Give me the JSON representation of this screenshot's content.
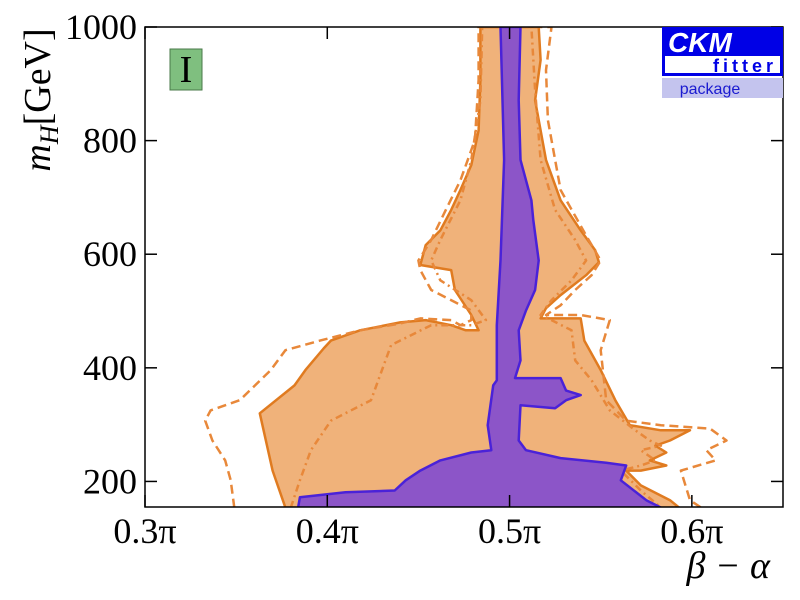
{
  "chart_data": {
    "type": "region",
    "x_label": "β − α",
    "y_label": "m",
    "y_label_sub": "H",
    "y_label_unit": "[GeV]",
    "panel_label": "I",
    "logo": {
      "line1": "CKM",
      "line2": "fitter",
      "line3": "package"
    },
    "xlim": [
      0.3,
      0.65
    ],
    "ylim": [
      155,
      1000
    ],
    "xticks": [
      {
        "value": 0.3,
        "label": "0.3π"
      },
      {
        "value": 0.4,
        "label": "0.4π"
      },
      {
        "value": 0.5,
        "label": "0.5π"
      },
      {
        "value": 0.6,
        "label": "0.6π"
      }
    ],
    "yticks": [
      200,
      400,
      600,
      800,
      1000
    ],
    "regions": [
      {
        "style": "filled",
        "fill": "#f0b27a",
        "stroke": "#e07b20",
        "x": [
          0.377,
          0.37,
          0.363,
          0.382,
          0.388,
          0.398,
          0.402,
          0.418,
          0.44,
          0.454,
          0.468,
          0.476,
          0.483,
          0.479,
          0.47,
          0.468,
          0.451,
          0.454,
          0.462,
          0.468,
          0.473,
          0.479,
          0.483,
          0.484,
          0.484,
          0.516,
          0.517,
          0.514,
          0.52,
          0.528,
          0.539,
          0.547,
          0.549,
          0.542,
          0.528,
          0.52,
          0.517,
          0.539,
          0.541,
          0.55,
          0.558,
          0.566,
          0.583,
          0.599,
          0.588,
          0.58,
          0.586,
          0.577,
          0.586,
          0.572,
          0.564,
          0.572,
          0.588,
          0.593
        ],
        "y": [
          154,
          219,
          320,
          369,
          396,
          434,
          448,
          466,
          480,
          484,
          475,
          466,
          466,
          493,
          537,
          572,
          581,
          616,
          642,
          678,
          713,
          757,
          818,
          907,
          1000,
          1000,
          942,
          871,
          766,
          695,
          642,
          607,
          586,
          563,
          528,
          505,
          487,
          487,
          448,
          396,
          343,
          299,
          290,
          290,
          272,
          263,
          251,
          237,
          228,
          219,
          219,
          193,
          167,
          154
        ]
      },
      {
        "style": "dashed",
        "stroke": "#e8883a",
        "x": [
          0.349,
          0.347,
          0.344,
          0.337,
          0.333,
          0.336,
          0.352,
          0.369,
          0.377,
          0.396,
          0.418,
          0.44,
          0.451,
          0.468,
          0.473,
          0.479,
          0.479,
          0.457,
          0.451,
          0.45,
          0.457,
          0.465,
          0.473,
          0.481,
          0.483,
          0.483,
          0.523,
          0.52,
          0.521,
          0.528,
          0.542,
          0.55,
          0.545,
          0.536,
          0.528,
          0.52,
          0.539,
          0.555,
          0.55,
          0.553,
          0.564,
          0.583,
          0.61,
          0.619,
          0.608,
          0.613,
          0.594,
          0.599,
          0.605
        ],
        "y": [
          154,
          202,
          237,
          272,
          307,
          325,
          343,
          396,
          431,
          448,
          466,
          478,
          487,
          484,
          475,
          484,
          501,
          537,
          572,
          589,
          625,
          678,
          730,
          801,
          907,
          1000,
          1000,
          924,
          836,
          713,
          633,
          589,
          563,
          537,
          510,
          493,
          493,
          484,
          431,
          343,
          307,
          299,
          293,
          272,
          255,
          237,
          219,
          167,
          154
        ]
      },
      {
        "style": "dashdot",
        "stroke": "#e8883a",
        "x": [
          0.38,
          0.385,
          0.391,
          0.402,
          0.424,
          0.429,
          0.435,
          0.457,
          0.479,
          0.487,
          0.479,
          0.462,
          0.457,
          0.462,
          0.473,
          0.479,
          0.484,
          0.485,
          0.512,
          0.514,
          0.517,
          0.525,
          0.536,
          0.542,
          0.534,
          0.523,
          0.517,
          0.523,
          0.534,
          0.536,
          0.545,
          0.555,
          0.569,
          0.577,
          0.583,
          0.572,
          0.58,
          0.572,
          0.561,
          0.572,
          0.583
        ],
        "y": [
          154,
          202,
          255,
          307,
          343,
          387,
          440,
          475,
          475,
          484,
          519,
          554,
          589,
          625,
          695,
          766,
          871,
          1000,
          1000,
          889,
          766,
          678,
          625,
          589,
          554,
          519,
          493,
          484,
          466,
          413,
          378,
          325,
          290,
          272,
          263,
          255,
          237,
          228,
          219,
          184,
          154
        ]
      },
      {
        "style": "filled",
        "fill": "#8c55c8",
        "stroke": "#4a22d8",
        "x": [
          0.384,
          0.385,
          0.41,
          0.437,
          0.443,
          0.451,
          0.462,
          0.479,
          0.49,
          0.488,
          0.491,
          0.493,
          0.493,
          0.495,
          0.497,
          0.495,
          0.506,
          0.505,
          0.506,
          0.512,
          0.513,
          0.516,
          0.514,
          0.509,
          0.505,
          0.506,
          0.503,
          0.528,
          0.531,
          0.539,
          0.531,
          0.525,
          0.506,
          0.505,
          0.509,
          0.528,
          0.553,
          0.564,
          0.561,
          0.575,
          0.583
        ],
        "y": [
          154,
          172,
          181,
          184,
          202,
          219,
          237,
          251,
          255,
          299,
          369,
          378,
          475,
          589,
          766,
          1000,
          1000,
          871,
          766,
          695,
          660,
          589,
          537,
          501,
          466,
          413,
          382,
          382,
          360,
          352,
          343,
          329,
          334,
          272,
          255,
          241,
          233,
          228,
          202,
          167,
          154
        ]
      }
    ]
  }
}
